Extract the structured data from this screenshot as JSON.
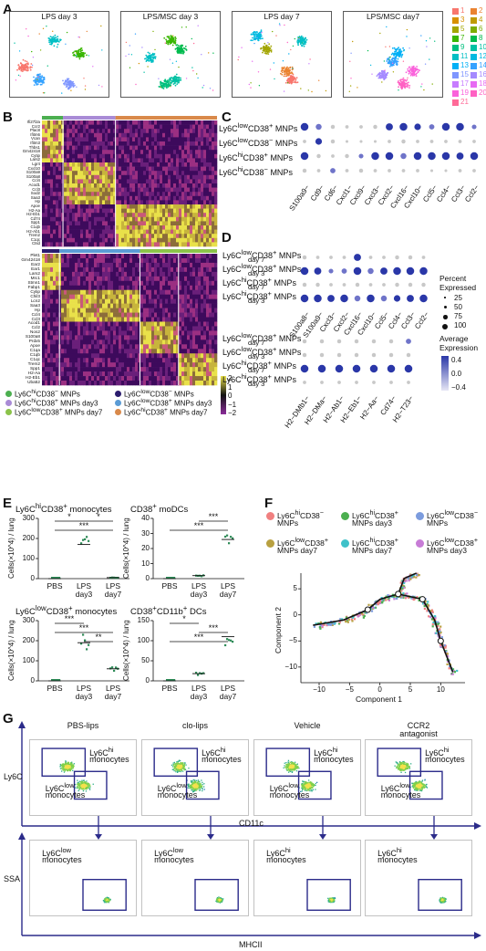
{
  "panels": {
    "A": "A",
    "B": "B",
    "C": "C",
    "D": "D",
    "E": "E",
    "F": "F",
    "G": "G"
  },
  "panel_a": {
    "titles": [
      "LPS day 3",
      "LPS/MSC day 3",
      "LPS day 7",
      "LPS/MSC day7"
    ],
    "legend": [
      {
        "label": "1",
        "color": "#f8766d"
      },
      {
        "label": "2",
        "color": "#ea8331"
      },
      {
        "label": "3",
        "color": "#d89000"
      },
      {
        "label": "4",
        "color": "#c09b00"
      },
      {
        "label": "5",
        "color": "#a3a500"
      },
      {
        "label": "6",
        "color": "#7cae00"
      },
      {
        "label": "7",
        "color": "#39b600"
      },
      {
        "label": "8",
        "color": "#00bb4e"
      },
      {
        "label": "9",
        "color": "#00bf7d"
      },
      {
        "label": "10",
        "color": "#00c1a3"
      },
      {
        "label": "11",
        "color": "#00bfc4"
      },
      {
        "label": "12",
        "color": "#00bae0"
      },
      {
        "label": "13",
        "color": "#00b0f6"
      },
      {
        "label": "14",
        "color": "#35a2ff"
      },
      {
        "label": "15",
        "color": "#7f96ff"
      },
      {
        "label": "16",
        "color": "#a58aff"
      },
      {
        "label": "17",
        "color": "#c77cff"
      },
      {
        "label": "18",
        "color": "#e76bf3"
      },
      {
        "label": "19",
        "color": "#fa62db"
      },
      {
        "label": "20",
        "color": "#ff61c3"
      },
      {
        "label": "21",
        "color": "#ff6a98"
      }
    ]
  },
  "panel_b": {
    "genes_top": [
      "Ifi27l2a",
      "Ccr2",
      "Plac8",
      "Ifitm6",
      "Vcan",
      "Ifitm3",
      "Thbs1",
      "Gm42418",
      "Cytip",
      "Lars2",
      "Lgr4",
      "Cxcl10",
      "S100a9",
      "S100a8",
      "Ccl4",
      "Acod1",
      "Ccl3",
      "Sod2",
      "Saa3",
      "Hp",
      "Apoe",
      "H2-Aa",
      "H2-Eb1",
      "Cd74",
      "Spp1",
      "C1qb",
      "H2-Ab1",
      "Trem2",
      "C1qc",
      "Ctsd"
    ],
    "genes_bottom": [
      "Plet1",
      "Gm42418",
      "Ear2",
      "Ear1",
      "Lars2",
      "Mrc1",
      "Stmn1",
      "Fabp1",
      "Cytip",
      "Chil3",
      "Lcn2",
      "Saa3",
      "Hp",
      "Ccl4",
      "Ccl3",
      "Acod1",
      "Ccl2",
      "Nos2",
      "S100a8",
      "Prdx5",
      "Apoe",
      "C1qa",
      "C1qb",
      "C1qc",
      "Trem2",
      "Spp1",
      "H2-Aa",
      "H2-Eb1",
      "Uba52"
    ],
    "colorbar_ticks": [
      "2",
      "1",
      "0",
      "−1",
      "−2"
    ],
    "legend": [
      {
        "label": "Ly6C<sup>hi</sup>CD38<sup>−</sup> MNPs",
        "color": "#4caf50"
      },
      {
        "label": "Ly6C<sup>low</sup>CD38<sup>−</sup> MNPs",
        "color": "#2b1d6e"
      },
      {
        "label": "Ly6C<sup>hi</sup>CD38<sup>+</sup> MNPs day3",
        "color": "#a98bd6"
      },
      {
        "label": "Ly6C<sup>low</sup>CD38<sup>+</sup> MNPs day3",
        "color": "#5b9bd5"
      },
      {
        "label": "Ly6C<sup>low</sup>CD38<sup>+</sup> MNPs day7",
        "color": "#8bc34a"
      },
      {
        "label": "Ly6C<sup>hi</sup>CD38<sup>+</sup> MNPs day7",
        "color": "#d9894a"
      }
    ]
  },
  "panel_c": {
    "rows": [
      "Ly6C<sup>low</sup>CD38<sup>+</sup> MNPs",
      "Ly6C<sup>low</sup>CD38<sup>−</sup> MNPs",
      "Ly6C<sup>hi</sup>CD38<sup>+</sup> MNPs",
      "Ly6C<sup>hi</sup>CD38<sup>−</sup> MNPs"
    ],
    "genes": [
      "S100a9−",
      "Cd9−",
      "Cd6−",
      "Cxcl1−",
      "Cxcl9−",
      "Cxcl3−",
      "Cxcl2−",
      "Cxcl16−",
      "Cxcl10−",
      "Ccl5−",
      "Ccl4−",
      "Ccl3−",
      "Ccl2−"
    ]
  },
  "panel_d": {
    "rows": [
      [
        "Ly6C<sup>low</sup>CD38<sup>+</sup> MNPs",
        "day 7"
      ],
      [
        "Ly6C<sup>low</sup>CD38<sup>+</sup> MNPs",
        "day 3"
      ],
      [
        "Ly6C<sup>hi</sup>CD38<sup>+</sup> MNPs",
        "day 7"
      ],
      [
        "Ly6C<sup>hi</sup>CD38<sup>+</sup> MNPs",
        "day 3"
      ]
    ],
    "genes_top": [
      "S100a8−",
      "S100a9−",
      "Cxcl3−",
      "Cxcl2−",
      "Cxcl16−",
      "Cxcl10−",
      "Ccl5−",
      "Ccl4−",
      "Ccl3−",
      "Ccl2−"
    ],
    "genes_bottom": [
      "H2−DMb1−",
      "H2−DMa−",
      "H2−Ab1−",
      "H2−Eb1−",
      "H2−Aa−",
      "Cd74−",
      "H2−T23−"
    ],
    "size_legend_title": [
      "Percent",
      "Expressed"
    ],
    "size_legend": [
      "25",
      "50",
      "75",
      "100"
    ],
    "color_legend_title": [
      "Average",
      "Expression"
    ],
    "color_legend_ticks": [
      "0.4",
      "0.0",
      "−0.4"
    ]
  },
  "panel_e": {
    "ylabel": "Cells(×10^4) / lung",
    "plots": [
      {
        "title": "Ly6C<sup>hi</sup>CD38<sup>+</sup> monocytes",
        "ticks": [
          "300",
          "200",
          "100",
          "0"
        ],
        "groups": [
          "PBS",
          "LPS|day3",
          "LPS|day7"
        ],
        "sig": [
          "*",
          "*",
          "***"
        ]
      },
      {
        "title": "CD38<sup>+</sup> moDCs",
        "ticks": [
          "40",
          "30",
          "20",
          "10",
          "0"
        ],
        "groups": [
          "PBS",
          "LPS|day3",
          "LPS|day7"
        ],
        "sig": [
          "***",
          "***"
        ]
      },
      {
        "title": "Ly6C<sup>low</sup>CD38<sup>+</sup> monocytes",
        "ticks": [
          "300",
          "200",
          "100",
          "0"
        ],
        "groups": [
          "PBS",
          "LPS|day3",
          "LPS|day7"
        ],
        "sig": [
          "***",
          "***",
          "**"
        ]
      },
      {
        "title": "CD38<sup>+</sup>CD11b<sup>+</sup> DCs",
        "ticks": [
          "150",
          "100",
          "50",
          "0"
        ],
        "groups": [
          "PBS",
          "LPS|day3",
          "LPS|day7"
        ],
        "sig": [
          "*",
          "***",
          "***"
        ]
      }
    ]
  },
  "panel_f": {
    "legend": [
      {
        "label": "Ly6C<sup>hi</sup>CD38<sup>−</sup>|MNPs",
        "color": "#f08080"
      },
      {
        "label": "Ly6C<sup>hi</sup>CD38<sup>+</sup>|MNPs day3",
        "color": "#4caf50"
      },
      {
        "label": "Ly6C<sup>low</sup>CD38<sup>−</sup>|MNPs",
        "color": "#7c9cde"
      },
      {
        "label": "Ly6C<sup>low</sup>CD38<sup>+</sup>|MNPs day7",
        "color": "#b8a040"
      },
      {
        "label": "Ly6C<sup>hi</sup>CD38<sup>+</sup>|MNPs day7",
        "color": "#3ec1c9"
      },
      {
        "label": "Ly6C<sup>low</sup>CD38<sup>+</sup>|MNPs day3",
        "color": "#c77cd6"
      }
    ],
    "xlabel": "Component 1",
    "ylabel": "Component 2",
    "xticks": [
      "−10",
      "−5",
      "0",
      "5",
      "10"
    ],
    "yticks": [
      "5",
      "0",
      "−5",
      "−10"
    ]
  },
  "panel_g": {
    "conditions": [
      "PBS-lips",
      "clo-lips",
      "Vehicle",
      "CCR2|antagonist"
    ],
    "top_y": "Ly6C",
    "top_x": "CD11c",
    "bottom_y": "SSA",
    "bottom_x": "MHCII",
    "gate_hi": "Ly6C<sup>hi</sup>|monocytes",
    "gate_low": "Ly6C<sup>low</sup>|monocytes",
    "bottom_labels": [
      "Ly6C<sup>low</sup>|monocytes",
      "Ly6C<sup>low</sup>|monocytes",
      "Ly6C<sup>hi</sup>|monocytes",
      "Ly6C<sup>hi</sup>|monocytes"
    ]
  }
}
